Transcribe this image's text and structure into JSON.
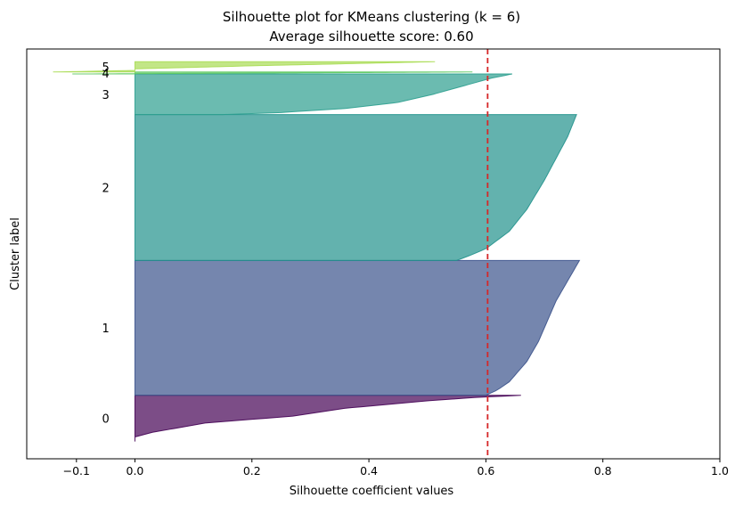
{
  "chart_data": {
    "type": "area",
    "title": "Silhouette plot for KMeans clustering (k = 6)",
    "subtitle": "Average silhouette score: 0.60",
    "xlabel": "Silhouette coefficient values",
    "ylabel": "Cluster label",
    "xlim": [
      -0.185,
      1.0
    ],
    "ylim": [
      0,
      1000
    ],
    "x_ticks": [
      -0.1,
      0.0,
      0.2,
      0.4,
      0.6,
      0.8,
      1.0
    ],
    "x_tick_labels": [
      "−0.1",
      "0.0",
      "0.2",
      "0.4",
      "0.6",
      "0.8",
      "1.0"
    ],
    "grid": false,
    "average_score": 0.603,
    "average_line_color": "#d62728",
    "series": [
      {
        "name": "0",
        "color": "#440154",
        "y_start": 42,
        "y_end": 155,
        "sample_silhouettes": [
          [
            0.0,
            0.0
          ],
          [
            0.1,
            0.0
          ],
          [
            0.2,
            0.03
          ],
          [
            0.4,
            0.12
          ],
          [
            0.55,
            0.27
          ],
          [
            0.72,
            0.36
          ],
          [
            0.8,
            0.43
          ],
          [
            0.88,
            0.5
          ],
          [
            0.95,
            0.58
          ],
          [
            1.0,
            0.66
          ]
        ]
      },
      {
        "name": "1",
        "color": "#3b528b",
        "y_start": 155,
        "y_end": 484,
        "sample_silhouettes": [
          [
            0.0,
            0.6
          ],
          [
            0.04,
            0.62
          ],
          [
            0.1,
            0.64
          ],
          [
            0.25,
            0.67
          ],
          [
            0.4,
            0.69
          ],
          [
            0.55,
            0.705
          ],
          [
            0.7,
            0.72
          ],
          [
            0.85,
            0.74
          ],
          [
            1.0,
            0.76
          ]
        ]
      },
      {
        "name": "2",
        "color": "#21918c",
        "y_start": 484,
        "y_end": 840,
        "sample_silhouettes": [
          [
            0.0,
            0.55
          ],
          [
            0.03,
            0.57
          ],
          [
            0.08,
            0.6
          ],
          [
            0.2,
            0.64
          ],
          [
            0.35,
            0.67
          ],
          [
            0.55,
            0.7
          ],
          [
            0.7,
            0.72
          ],
          [
            0.85,
            0.74
          ],
          [
            1.0,
            0.755
          ]
        ]
      },
      {
        "name": "3",
        "color": "#2c9e8f",
        "y_start": 840,
        "y_end": 939,
        "sample_silhouettes": [
          [
            0.0,
            0.15
          ],
          [
            0.05,
            0.25
          ],
          [
            0.15,
            0.36
          ],
          [
            0.3,
            0.45
          ],
          [
            0.5,
            0.51
          ],
          [
            0.7,
            0.56
          ],
          [
            0.9,
            0.61
          ],
          [
            1.0,
            0.645
          ]
        ]
      },
      {
        "name": "4",
        "color": "#5ec962",
        "y_start": 939,
        "y_end": 944,
        "sample_silhouettes": [
          [
            0.0,
            -0.107
          ],
          [
            0.3,
            0.1
          ],
          [
            0.7,
            0.4
          ],
          [
            1.0,
            0.577
          ]
        ]
      },
      {
        "name": "5",
        "color": "#a8db52",
        "y_start": 944,
        "y_end": 969,
        "sample_silhouettes": [
          [
            0.0,
            -0.14
          ],
          [
            0.15,
            0.0
          ],
          [
            0.3,
            0.0
          ],
          [
            0.6,
            0.2
          ],
          [
            0.85,
            0.4
          ],
          [
            1.0,
            0.513
          ]
        ]
      }
    ]
  }
}
